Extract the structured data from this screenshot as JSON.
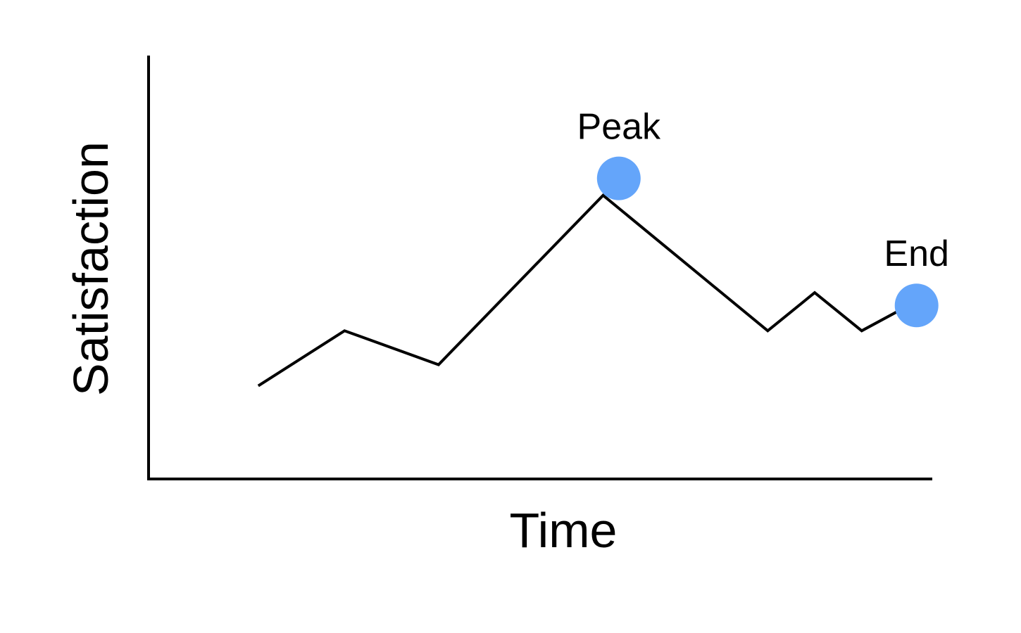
{
  "chart_data": {
    "type": "line",
    "xlabel": "Time",
    "ylabel": "Satisfaction",
    "xlim": [
      0,
      100
    ],
    "ylim": [
      0,
      100
    ],
    "grid": false,
    "series": [
      {
        "x": [
          14,
          25,
          37,
          58,
          79,
          85,
          91,
          97
        ],
        "values": [
          22,
          35,
          27,
          67,
          35,
          44,
          35,
          41
        ]
      }
    ],
    "annotations": [
      {
        "text": "Peak",
        "x": 60,
        "y": 71,
        "marker": true
      },
      {
        "text": "End",
        "x": 98,
        "y": 41,
        "marker": true
      }
    ],
    "colors": {
      "line": "#000000",
      "marker": "#64a5fa",
      "axis": "#000000"
    }
  }
}
